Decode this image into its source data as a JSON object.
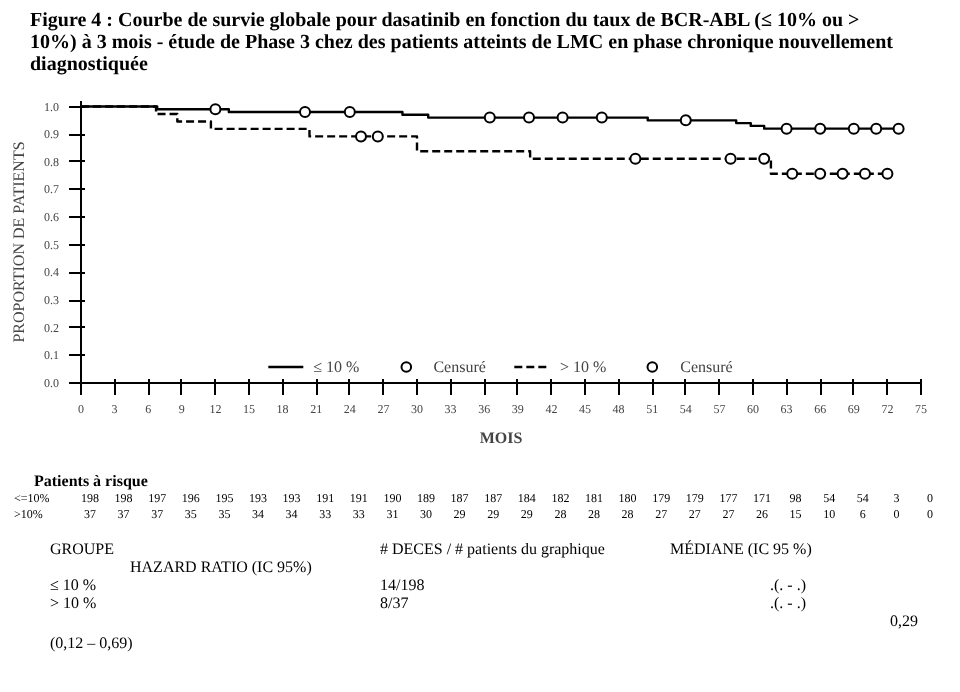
{
  "chart_data": {
    "type": "step",
    "title": "Figure 4 :    Courbe de survie globale pour dasatinib en fonction du taux de BCR-ABL (≤ 10% ou > 10%) à 3 mois - étude de Phase 3 chez des patients atteints de LMC en phase chronique nouvellement diagnostiquée",
    "xlabel": "MOIS",
    "ylabel": "PROPORTION DE PATIENTS",
    "xlim": [
      0,
      75
    ],
    "xticks": [
      0,
      3,
      6,
      9,
      12,
      15,
      18,
      21,
      24,
      27,
      30,
      33,
      36,
      39,
      42,
      45,
      48,
      51,
      54,
      57,
      60,
      63,
      66,
      69,
      72,
      75
    ],
    "ylim": [
      0,
      1.02
    ],
    "yticks": [
      {
        "value": 0,
        "label": "0.0"
      },
      {
        "value": 0.1,
        "label": "0.1"
      },
      {
        "value": 0.2,
        "label": "0.2"
      },
      {
        "value": 0.3,
        "label": "0.3"
      },
      {
        "value": 0.4,
        "label": "0.4"
      },
      {
        "value": 0.5,
        "label": "0.5"
      },
      {
        "value": 0.6,
        "label": "0.6"
      },
      {
        "value": 0.7,
        "label": "0.7"
      },
      {
        "value": 0.8,
        "label": "0.8"
      },
      {
        "value": 0.9,
        "label": "0.9"
      },
      {
        "value": 1.0,
        "label": "1.0"
      }
    ],
    "grid": false,
    "legend": "bottom",
    "series": [
      {
        "name": "≤ 10 %",
        "line_style": "solid",
        "color": "#000000",
        "x": [
          0,
          6.8,
          13.2,
          28.7,
          31,
          50.6,
          58.5,
          59.8,
          61,
          73
        ],
        "values": [
          1.0,
          0.99,
          0.98,
          0.97,
          0.96,
          0.95,
          0.94,
          0.93,
          0.92,
          0.92
        ]
      },
      {
        "name": "Censuré",
        "type": "scatter",
        "marker": "circle",
        "color": "#000000",
        "x": [
          12,
          20,
          24,
          36.5,
          40,
          43,
          46.5,
          54,
          63,
          66,
          69,
          71,
          73
        ],
        "values": [
          0.99,
          0.98,
          0.98,
          0.96,
          0.96,
          0.96,
          0.96,
          0.95,
          0.92,
          0.92,
          0.92,
          0.92,
          0.92
        ]
      },
      {
        "name": "> 10 %",
        "line_style": "dashed",
        "color": "#000000",
        "x": [
          0,
          6.7,
          8.6,
          11.6,
          20.4,
          30,
          40.1,
          61.6,
          72.4
        ],
        "values": [
          1.0,
          0.973,
          0.946,
          0.919,
          0.892,
          0.838,
          0.811,
          0.757,
          0.757
        ]
      },
      {
        "name": "Censuré",
        "type": "scatter",
        "marker": "circle",
        "color": "#000000",
        "x": [
          25,
          26.5,
          49.5,
          58,
          61,
          63.5,
          66,
          68,
          70,
          72
        ],
        "values": [
          0.892,
          0.892,
          0.811,
          0.811,
          0.811,
          0.757,
          0.757,
          0.757,
          0.757,
          0.757
        ]
      }
    ],
    "annotations": [
      "Patients à risque",
      "<=10%",
      "198 198 197 196 195 193 193 191 191 190 189 187 187 184 182 181 180 179 179 177 171 98 54 54 3 0",
      ">10%",
      "37 37 37 35 35 34 34 33 33 31 30 29 29 29 28 28 28 27 27 27 26 15 10 6 0 0",
      "GROUPE",
      "# DECES / # patients du graphique",
      "MÉDIANE (IC 95 %)",
      "HAZARD RATIO (IC 95%)",
      "≤ 10 %",
      "14/198",
      ".(. - .)",
      "> 10 %",
      "8/37",
      ".(. - .)",
      "0,29",
      "(0,12 – 0,69)"
    ]
  }
}
